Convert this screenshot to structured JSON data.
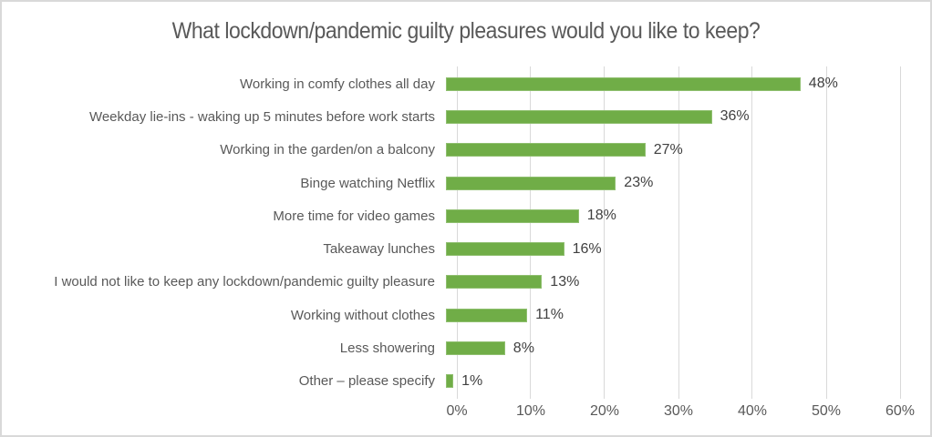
{
  "frame": {
    "background_color": "#ffffff",
    "border_color": "#d9d9d9"
  },
  "chart_data": {
    "type": "bar",
    "orientation": "horizontal",
    "title": "What lockdown/pandemic guilty pleasures would you like to keep?",
    "categories": [
      "Working in comfy clothes all day",
      "Weekday lie-ins - waking up 5 minutes before work starts",
      "Working in the garden/on a balcony",
      "Binge watching Netflix",
      "More time for video games",
      "Takeaway lunches",
      "I would not like to keep any lockdown/pandemic guilty pleasure",
      "Working without clothes",
      "Less showering",
      "Other – please specify"
    ],
    "values": [
      48,
      36,
      27,
      23,
      18,
      16,
      13,
      11,
      8,
      1
    ],
    "value_labels": [
      "48%",
      "36%",
      "27%",
      "23%",
      "18%",
      "16%",
      "13%",
      "11%",
      "8%",
      "1%"
    ],
    "xlabel": "",
    "ylabel": "",
    "xlim": [
      0,
      60
    ],
    "x_tick_labels": [
      "0%",
      "10%",
      "20%",
      "30%",
      "40%",
      "50%",
      "60%"
    ],
    "x_tick_values": [
      0,
      10,
      20,
      30,
      40,
      50,
      60
    ],
    "grid": true,
    "legend": "none",
    "bar_color": "#70ad47",
    "gridline_color": "#d9d9d9",
    "title_color": "#595959",
    "category_label_color": "#595959",
    "value_label_color": "#404040",
    "tick_label_color": "#595959"
  }
}
